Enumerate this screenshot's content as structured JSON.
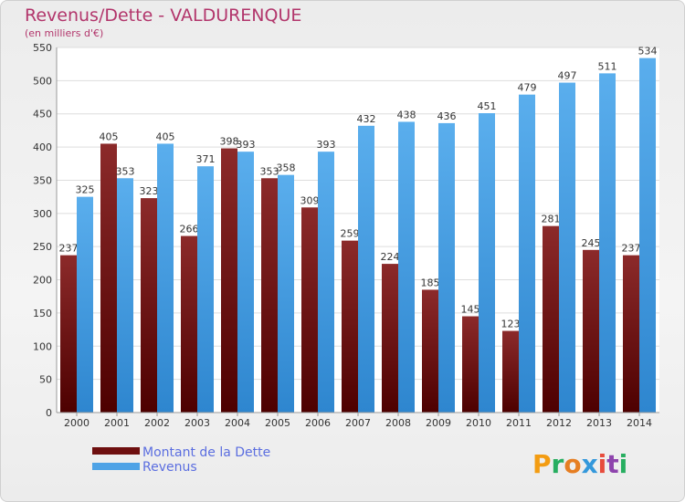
{
  "chart_data": {
    "type": "bar",
    "title": "Revenus/Dette - VALDURENQUE",
    "subtitle": "(en milliers d'€)",
    "categories": [
      "2000",
      "2001",
      "2002",
      "2003",
      "2004",
      "2005",
      "2006",
      "2007",
      "2008",
      "2009",
      "2010",
      "2011",
      "2012",
      "2013",
      "2014"
    ],
    "series": [
      {
        "name": "Montant de la Dette",
        "values": [
          237,
          405,
          323,
          266,
          398,
          353,
          309,
          259,
          224,
          185,
          145,
          123,
          281,
          245,
          237
        ],
        "color": "#7a1212"
      },
      {
        "name": "Revenus",
        "values": [
          325,
          353,
          405,
          371,
          393,
          358,
          393,
          432,
          438,
          436,
          451,
          479,
          497,
          511,
          534
        ],
        "color": "#4fa3e6"
      }
    ],
    "ylim": [
      0,
      550
    ],
    "yticks": [
      0,
      50,
      100,
      150,
      200,
      250,
      300,
      350,
      400,
      450,
      500,
      550
    ],
    "grid": true,
    "legend_position": "bottom-left"
  },
  "branding": {
    "logo_text": "Proxiti",
    "logo_letters": [
      "P",
      "r",
      "o",
      "x",
      "i",
      "t",
      "i"
    ],
    "logo_colors": [
      "#f39c12",
      "#27ae60",
      "#e67e22",
      "#3498db",
      "#e74c3c",
      "#8e44ad",
      "#27ae60"
    ]
  }
}
